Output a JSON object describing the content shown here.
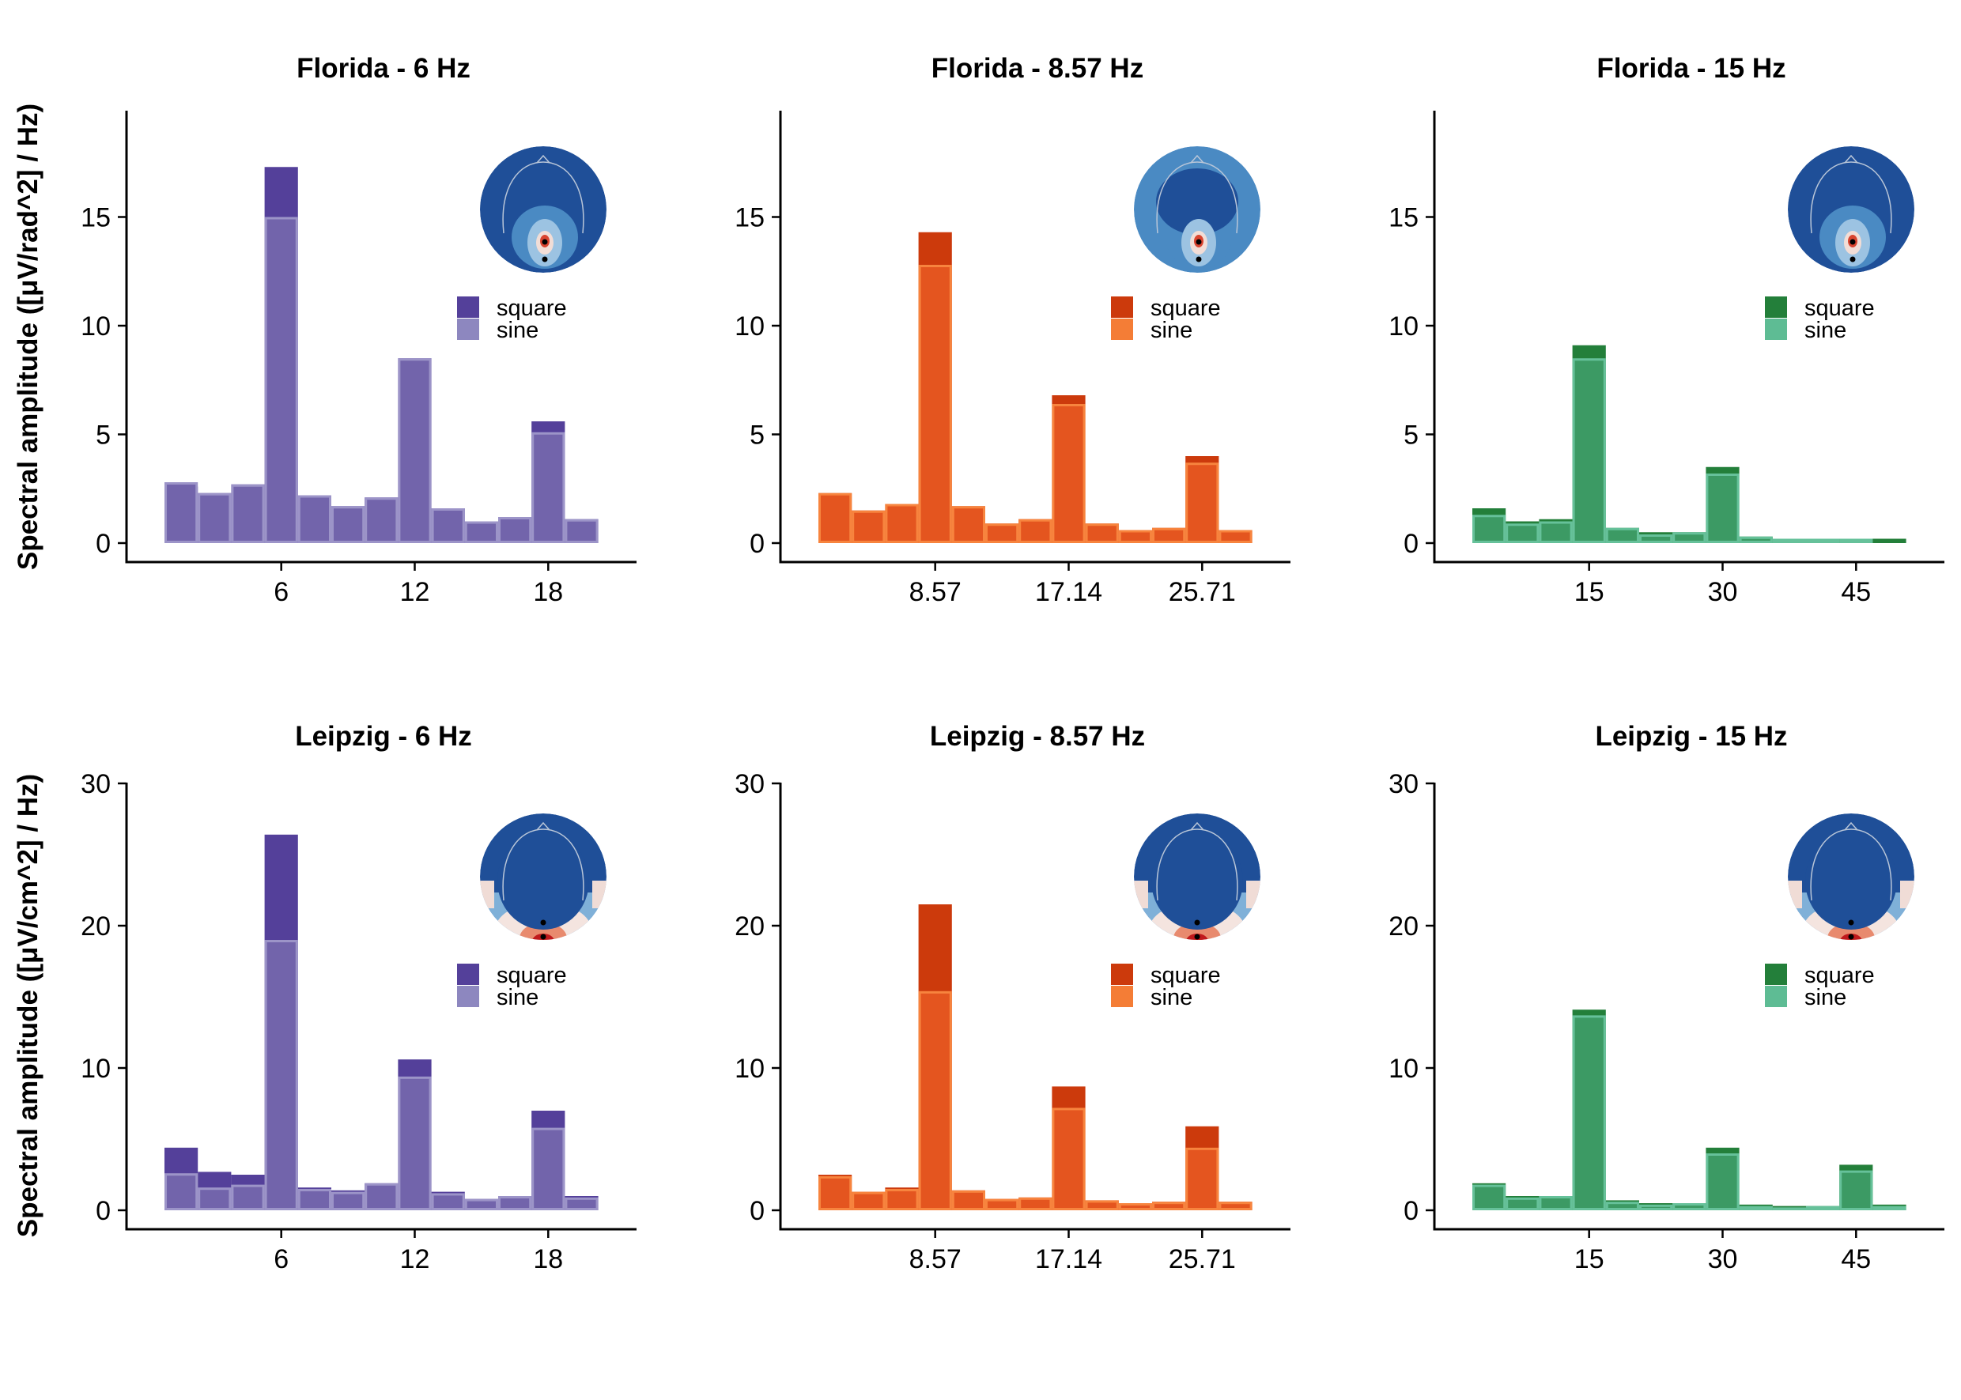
{
  "y_axis_labels": {
    "top": "Spectral amplitude ([μV/rad^2] / Hz)",
    "bottom": "Spectral amplitude ([μV/cm^2] / Hz)"
  },
  "legend_labels": {
    "square": "square",
    "sine": "sine"
  },
  "palettes": {
    "purple": {
      "square": "#54409a",
      "sine": "#7264ab",
      "sine_edge": "#9c94c8",
      "legend_sine": "#8d87bf"
    },
    "orange": {
      "square": "#cc3a0c",
      "sine": "#e4551f",
      "sine_edge": "#f7843e",
      "legend_sine": "#f47d36"
    },
    "green": {
      "square": "#237f3a",
      "sine": "#3c9a64",
      "sine_edge": "#66c19a",
      "legend_sine": "#5ebc94"
    }
  },
  "chart_data": [
    {
      "type": "bar",
      "title": "Florida - 6 Hz",
      "row": 0,
      "col": 0,
      "palette": "purple",
      "xticks": [
        "6",
        "12",
        "18"
      ],
      "xtick_bins": [
        3,
        7,
        11
      ],
      "ylim": [
        0,
        20
      ],
      "yticks": [
        0,
        5,
        10,
        15
      ],
      "series": [
        {
          "name": "square",
          "values": [
            2.6,
            2.3,
            2.7,
            17.3,
            2.2,
            1.7,
            2.1,
            8.5,
            1.6,
            1.0,
            1.2,
            5.6,
            1.1
          ]
        },
        {
          "name": "sine",
          "values": [
            2.8,
            2.3,
            2.7,
            15.0,
            2.2,
            1.7,
            2.1,
            8.5,
            1.6,
            1.0,
            1.2,
            5.1,
            1.1
          ]
        }
      ]
    },
    {
      "type": "bar",
      "title": "Florida - 8.57 Hz",
      "row": 0,
      "col": 1,
      "palette": "orange",
      "xticks": [
        "8.57",
        "17.14",
        "25.71"
      ],
      "xtick_bins": [
        3,
        7,
        11
      ],
      "ylim": [
        0,
        20
      ],
      "yticks": [
        0,
        5,
        10,
        15
      ],
      "series": [
        {
          "name": "square",
          "values": [
            2.3,
            1.5,
            1.8,
            14.3,
            1.7,
            0.9,
            1.1,
            6.8,
            0.9,
            0.6,
            0.7,
            4.0,
            0.6
          ]
        },
        {
          "name": "sine",
          "values": [
            2.3,
            1.5,
            1.8,
            12.8,
            1.7,
            0.9,
            1.1,
            6.4,
            0.9,
            0.6,
            0.7,
            3.7,
            0.6
          ]
        }
      ]
    },
    {
      "type": "bar",
      "title": "Florida - 15 Hz",
      "row": 0,
      "col": 2,
      "palette": "green",
      "xticks": [
        "15",
        "30",
        "45"
      ],
      "xtick_bins": [
        3,
        7,
        11
      ],
      "ylim": [
        0,
        20
      ],
      "yticks": [
        0,
        5,
        10,
        15
      ],
      "series": [
        {
          "name": "square",
          "values": [
            1.6,
            1.0,
            1.1,
            9.1,
            0.7,
            0.5,
            0.5,
            3.5,
            0.3,
            0.2,
            0.2,
            0.2,
            0.2
          ]
        },
        {
          "name": "sine",
          "values": [
            1.3,
            0.9,
            1.0,
            8.5,
            0.7,
            0.4,
            0.5,
            3.2,
            0.3,
            0.2,
            0.2,
            0.2,
            0.1
          ]
        }
      ]
    },
    {
      "type": "bar",
      "title": "Leipzig - 6 Hz",
      "row": 1,
      "col": 0,
      "palette": "purple",
      "xticks": [
        "6",
        "12",
        "18"
      ],
      "xtick_bins": [
        3,
        7,
        11
      ],
      "ylim": [
        0,
        30
      ],
      "yticks": [
        0,
        10,
        20,
        30
      ],
      "series": [
        {
          "name": "square",
          "values": [
            4.4,
            2.7,
            2.5,
            26.4,
            1.6,
            1.4,
            1.9,
            10.6,
            1.3,
            0.8,
            1.0,
            7.0,
            1.0
          ]
        },
        {
          "name": "sine",
          "values": [
            2.6,
            1.6,
            1.8,
            19.0,
            1.5,
            1.3,
            1.9,
            9.4,
            1.2,
            0.8,
            1.0,
            5.8,
            0.9
          ]
        }
      ]
    },
    {
      "type": "bar",
      "title": "Leipzig - 8.57 Hz",
      "row": 1,
      "col": 1,
      "palette": "orange",
      "xticks": [
        "8.57",
        "17.14",
        "25.71"
      ],
      "xtick_bins": [
        3,
        7,
        11
      ],
      "ylim": [
        0,
        30
      ],
      "yticks": [
        0,
        10,
        20,
        30
      ],
      "series": [
        {
          "name": "square",
          "values": [
            2.5,
            1.3,
            1.6,
            21.5,
            1.4,
            0.8,
            0.9,
            8.7,
            0.7,
            0.5,
            0.6,
            5.9,
            0.6
          ]
        },
        {
          "name": "sine",
          "values": [
            2.4,
            1.3,
            1.5,
            15.4,
            1.4,
            0.8,
            0.9,
            7.2,
            0.7,
            0.5,
            0.6,
            4.4,
            0.6
          ]
        }
      ]
    },
    {
      "type": "bar",
      "title": "Leipzig - 15 Hz",
      "row": 1,
      "col": 2,
      "palette": "green",
      "xticks": [
        "15",
        "30",
        "45"
      ],
      "xtick_bins": [
        3,
        7,
        11
      ],
      "ylim": [
        0,
        30
      ],
      "yticks": [
        0,
        10,
        20,
        30
      ],
      "series": [
        {
          "name": "square",
          "values": [
            1.9,
            1.0,
            1.0,
            14.1,
            0.7,
            0.5,
            0.5,
            4.4,
            0.4,
            0.3,
            0.3,
            3.2,
            0.4
          ]
        },
        {
          "name": "sine",
          "values": [
            1.8,
            0.9,
            1.0,
            13.7,
            0.6,
            0.4,
            0.5,
            4.0,
            0.3,
            0.2,
            0.3,
            2.8,
            0.3
          ]
        }
      ]
    }
  ]
}
